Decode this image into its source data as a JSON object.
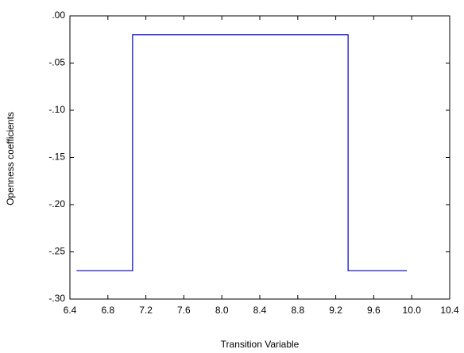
{
  "chart_data": {
    "type": "line",
    "x_label": "Transition Variable",
    "y_label": "Openness coefficients",
    "x": [
      6.47,
      7.06,
      7.06,
      9.33,
      9.33,
      9.95
    ],
    "series": [
      {
        "color": "#0000cc",
        "values": [
          -0.27,
          -0.27,
          -0.02,
          -0.02,
          -0.27,
          -0.27
        ]
      }
    ],
    "xlim": [
      6.4,
      10.4
    ],
    "xticks": [
      6.4,
      6.8,
      7.2,
      7.6,
      {
        "value": 8,
        "label": "8.0"
      },
      8.4,
      8.8,
      9.2,
      9.6,
      {
        "value": 10,
        "label": "10.0"
      },
      10.4
    ],
    "ylim": [
      -0.3,
      0
    ],
    "yticks": [
      {
        "value": -0.3,
        "label": "-.30"
      },
      {
        "value": -0.25,
        "label": "-.25"
      },
      {
        "value": -0.2,
        "label": "-.20"
      },
      {
        "value": -0.15,
        "label": "-.15"
      },
      {
        "value": -0.1,
        "label": "-.10"
      },
      {
        "value": -0.05,
        "label": "-.05"
      },
      {
        "value": 0,
        "label": ".00"
      }
    ]
  }
}
